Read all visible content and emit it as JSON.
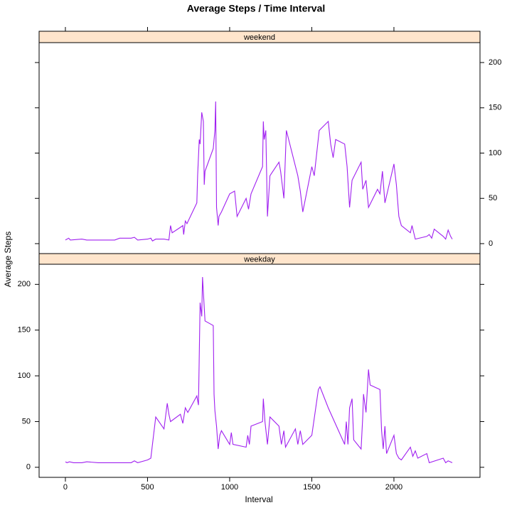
{
  "chart_data": {
    "type": "line",
    "title": "Average Steps / Time Interval",
    "xlabel": "Interval",
    "ylabel": "Average Steps",
    "color": "#a020f0",
    "xlim": [
      -160,
      2524
    ],
    "ylim": [
      -11,
      222
    ],
    "xticks": [
      0,
      500,
      1000,
      1500,
      2000
    ],
    "yticks": [
      0,
      50,
      100,
      150,
      200
    ],
    "series": [
      {
        "name": "weekend",
        "x": [
          0,
          20,
          30,
          100,
          130,
          300,
          330,
          400,
          420,
          440,
          500,
          520,
          530,
          550,
          600,
          630,
          640,
          650,
          700,
          715,
          720,
          730,
          740,
          800,
          805,
          815,
          820,
          830,
          840,
          845,
          850,
          900,
          910,
          915,
          920,
          930,
          935,
          950,
          1000,
          1030,
          1045,
          1100,
          1115,
          1130,
          1200,
          1205,
          1210,
          1220,
          1230,
          1245,
          1300,
          1310,
          1330,
          1345,
          1415,
          1430,
          1445,
          1500,
          1515,
          1530,
          1545,
          1600,
          1615,
          1630,
          1645,
          1700,
          1715,
          1730,
          1745,
          1800,
          1810,
          1830,
          1845,
          1900,
          1915,
          1930,
          1945,
          2000,
          2015,
          2030,
          2045,
          2100,
          2110,
          2130,
          2200,
          2215,
          2230,
          2245,
          2300,
          2315,
          2330,
          2345,
          2355
        ],
        "values": [
          4,
          6,
          4,
          5,
          4,
          4,
          6,
          6,
          7,
          4,
          5,
          6,
          3,
          5,
          5,
          4,
          20,
          12,
          18,
          20,
          10,
          25,
          22,
          45,
          75,
          115,
          110,
          145,
          135,
          65,
          80,
          105,
          125,
          157,
          40,
          20,
          30,
          35,
          55,
          58,
          30,
          50,
          38,
          55,
          85,
          135,
          115,
          125,
          30,
          75,
          90,
          80,
          50,
          125,
          75,
          58,
          35,
          85,
          75,
          100,
          125,
          135,
          110,
          95,
          115,
          110,
          85,
          40,
          70,
          90,
          60,
          70,
          40,
          60,
          55,
          80,
          45,
          88,
          65,
          30,
          20,
          12,
          20,
          5,
          8,
          10,
          6,
          16,
          8,
          5,
          15,
          8,
          5
        ]
      },
      {
        "name": "weekday",
        "x": [
          0,
          10,
          25,
          50,
          100,
          130,
          200,
          300,
          400,
          420,
          440,
          500,
          520,
          530,
          550,
          600,
          620,
          630,
          640,
          700,
          715,
          730,
          745,
          800,
          810,
          820,
          830,
          835,
          845,
          850,
          900,
          905,
          910,
          920,
          930,
          940,
          950,
          1000,
          1010,
          1020,
          1100,
          1110,
          1120,
          1130,
          1200,
          1205,
          1215,
          1230,
          1245,
          1300,
          1315,
          1330,
          1340,
          1400,
          1415,
          1430,
          1445,
          1500,
          1540,
          1550,
          1600,
          1700,
          1710,
          1720,
          1730,
          1745,
          1755,
          1800,
          1810,
          1815,
          1830,
          1845,
          1855,
          1915,
          1925,
          1935,
          1945,
          1955,
          2000,
          2015,
          2030,
          2045,
          2100,
          2115,
          2130,
          2145,
          2200,
          2215,
          2300,
          2315,
          2330,
          2355
        ],
        "values": [
          6,
          5,
          6,
          5,
          5,
          6,
          5,
          5,
          5,
          7,
          5,
          8,
          10,
          25,
          55,
          42,
          70,
          58,
          50,
          58,
          48,
          65,
          60,
          78,
          68,
          180,
          165,
          208,
          175,
          160,
          155,
          80,
          62,
          45,
          20,
          35,
          40,
          25,
          38,
          25,
          22,
          35,
          25,
          45,
          50,
          75,
          50,
          25,
          55,
          45,
          25,
          40,
          22,
          42,
          25,
          40,
          25,
          35,
          85,
          88,
          65,
          25,
          50,
          25,
          65,
          75,
          30,
          20,
          55,
          80,
          60,
          107,
          90,
          85,
          40,
          20,
          45,
          15,
          35,
          15,
          10,
          8,
          22,
          12,
          18,
          10,
          15,
          5,
          10,
          5,
          7,
          5
        ]
      }
    ]
  }
}
